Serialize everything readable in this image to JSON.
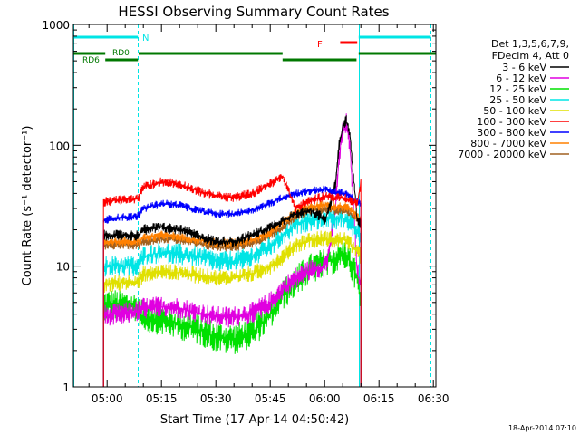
{
  "chart_data": {
    "type": "line",
    "title": "HESSI Observing Summary Count Rates",
    "xlabel": "Start Time (17-Apr-14 04:50:42)",
    "ylabel": "Count Rate (s⁻¹ detector⁻¹)",
    "x_ticks": [
      "05:00",
      "05:15",
      "05:30",
      "05:45",
      "06:00",
      "06:15",
      "06:30"
    ],
    "x_tick_minutes": [
      300,
      315,
      330,
      345,
      360,
      375,
      390
    ],
    "xlim": [
      290.7,
      390.7
    ],
    "ylim": [
      1,
      1000
    ],
    "y_scale": "log",
    "y_ticks": [
      "1",
      "10",
      "100",
      "1000"
    ],
    "y_tick_values": [
      1,
      10,
      100,
      1000
    ],
    "legend_header": [
      "Det 1,3,5,6,7,9,",
      "FDecim 4, Att 0"
    ],
    "legend_placement": "right",
    "footer_stamp": "18-Apr-2014 07:10",
    "markers": {
      "night": {
        "label": "N",
        "color": "#00e5e5",
        "segments": [
          [
            290.7,
            308.5
          ],
          [
            369.4,
            389.3
          ]
        ]
      },
      "flare": {
        "label": "F",
        "color": "#ff0000",
        "segments": [
          [
            364.3,
            369.0
          ]
        ]
      },
      "rd0": {
        "label": "RD0",
        "color": "#007800",
        "segments": [
          [
            308.7,
            348.4
          ],
          [
            369.4,
            390.7
          ]
        ]
      },
      "rd6": {
        "label": "RD6",
        "color": "#007800",
        "segments": [
          [
            290.7,
            299.5
          ],
          [
            299.5,
            308.5
          ],
          [
            348.4,
            368.8
          ]
        ]
      }
    },
    "night_boundaries": [
      290.7,
      308.5,
      369.4,
      389.3
    ],
    "series": [
      {
        "name": "3 - 6 keV",
        "color": "#000000",
        "x": [
          299,
          302,
          308.5,
          310,
          315,
          320,
          325,
          330,
          335,
          340,
          345,
          348.5,
          352,
          356,
          358,
          360,
          361,
          363,
          364,
          365,
          366,
          367,
          369,
          370
        ],
        "y": [
          18,
          18,
          18,
          20,
          21,
          20,
          18,
          16,
          16,
          18,
          21,
          24,
          27,
          29,
          27,
          24,
          28,
          48,
          100,
          140,
          165,
          120,
          24,
          22
        ]
      },
      {
        "name": "6 - 12 keV",
        "color": "#e000e0",
        "x": [
          299,
          302,
          308.5,
          310,
          315,
          320,
          325,
          330,
          335,
          340,
          345,
          348.5,
          352,
          356,
          358,
          360,
          361,
          363,
          364,
          365,
          366,
          367,
          369,
          370
        ],
        "y": [
          3.9,
          4,
          4.2,
          4.5,
          4.6,
          4.5,
          4.1,
          3.8,
          3.8,
          4.1,
          5,
          6.5,
          8,
          9.2,
          9.6,
          10,
          12,
          30,
          80,
          130,
          150,
          100,
          9,
          7
        ]
      },
      {
        "name": "12 - 25 keV",
        "color": "#00e000",
        "x": [
          299,
          302,
          308.5,
          310,
          315,
          320,
          325,
          330,
          335,
          340,
          345,
          348.5,
          352,
          356,
          360,
          363,
          366,
          369,
          370
        ],
        "y": [
          4.8,
          4.8,
          4.5,
          3.8,
          3.6,
          3.3,
          3,
          2.6,
          2.5,
          2.8,
          4,
          5.8,
          7.5,
          9.5,
          10.5,
          11.5,
          12.5,
          8,
          5
        ]
      },
      {
        "name": "25 - 50 keV",
        "color": "#00e5e5",
        "x": [
          299,
          302,
          308.5,
          310,
          315,
          320,
          325,
          330,
          335,
          340,
          345,
          348.5,
          352,
          356,
          360,
          363,
          366,
          369,
          370
        ],
        "y": [
          10,
          10,
          10,
          12,
          13,
          12.5,
          12,
          11,
          11,
          12,
          14.5,
          18,
          22,
          24,
          25,
          24.5,
          25,
          19,
          18
        ]
      },
      {
        "name": "50 - 100 keV",
        "color": "#e0e000",
        "x": [
          299,
          302,
          308.5,
          310,
          315,
          320,
          325,
          330,
          335,
          340,
          345,
          348.5,
          352,
          356,
          360,
          363,
          366,
          369,
          370
        ],
        "y": [
          7,
          7.2,
          7.5,
          8.5,
          9,
          8.8,
          8.4,
          8,
          8,
          8.6,
          10,
          12,
          15,
          16.5,
          17,
          16.5,
          16.5,
          13,
          12
        ]
      },
      {
        "name": "100 - 300 keV",
        "color": "#ff0000",
        "x": [
          299,
          302,
          308.5,
          310,
          315,
          320,
          325,
          330,
          335,
          340,
          345,
          348.5,
          352,
          356,
          360,
          363,
          366,
          369,
          370
        ],
        "y": [
          34,
          35,
          36,
          45,
          50,
          48,
          42,
          38,
          37,
          40,
          48,
          55,
          30,
          35,
          38,
          37,
          36,
          33,
          50
        ]
      },
      {
        "name": "300 - 800 keV",
        "color": "#0000ff",
        "x": [
          299,
          302,
          308.5,
          310,
          315,
          320,
          325,
          330,
          335,
          340,
          345,
          348.5,
          352,
          356,
          360,
          363,
          366,
          369,
          370
        ],
        "y": [
          24,
          25,
          26,
          30,
          33,
          32,
          29,
          27,
          27,
          29,
          33,
          37,
          40,
          42,
          43,
          41,
          40,
          34,
          32
        ]
      },
      {
        "name": "800 - 7000 keV",
        "color": "#ff8000",
        "x": [
          299,
          302,
          308.5,
          310,
          315,
          320,
          325,
          330,
          335,
          340,
          345,
          348.5,
          352,
          356,
          360,
          363,
          366,
          369,
          370
        ],
        "y": [
          16,
          16,
          16,
          17,
          18,
          17.5,
          16.5,
          15.5,
          15.5,
          16.5,
          19,
          23,
          28,
          31,
          32,
          31,
          31,
          26,
          24
        ]
      },
      {
        "name": "7000 - 20000 keV",
        "color": "#a06020",
        "x": [
          299,
          302,
          308.5,
          310,
          315,
          320,
          325,
          330,
          335,
          340,
          345,
          348.5,
          352,
          356,
          360,
          363,
          366,
          369,
          370
        ],
        "y": [
          15,
          15,
          15,
          16,
          17,
          16.5,
          15.5,
          14.5,
          14.5,
          15.5,
          18,
          21,
          26,
          29,
          30,
          29,
          29,
          24,
          22
        ]
      }
    ]
  }
}
